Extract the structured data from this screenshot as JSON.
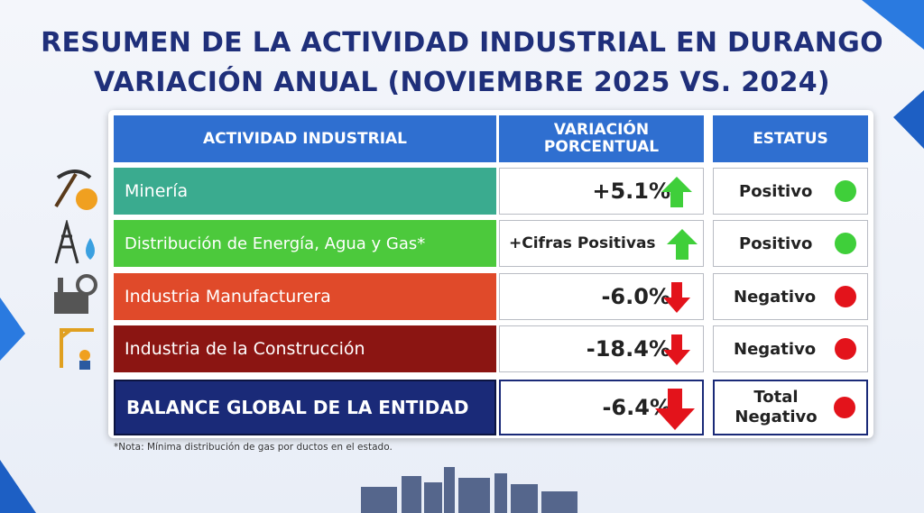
{
  "header": {
    "title_line1": "RESUMEN DE LA ACTIVIDAD INDUSTRIAL EN DURANGO",
    "title_line2": "VARIACIÓN ANUAL (NOVIEMBRE 2025 VS. 2024)"
  },
  "table": {
    "columns": [
      "ACTIVIDAD INDUSTRIAL",
      "VARIACIÓN PORCENTUAL",
      "ESTATUS"
    ],
    "rows": [
      [
        "Minería",
        "+5.1%",
        "Positivo"
      ],
      [
        "Distribución de Energía, Agua y Gas*",
        "+Cifras Positivas",
        "Positivo"
      ],
      [
        "Industria Manufacturera",
        "-6.0%",
        "Negativo"
      ],
      [
        "Industria de la Construcción",
        "-18.4%",
        "Negativo"
      ],
      [
        "BALANCE GLOBAL DE LA ENTIDAD",
        "-6.4%",
        "Total Negativo"
      ]
    ]
  },
  "note": "*Nota: Mínima distribución de gas por ductos en el estado."
}
